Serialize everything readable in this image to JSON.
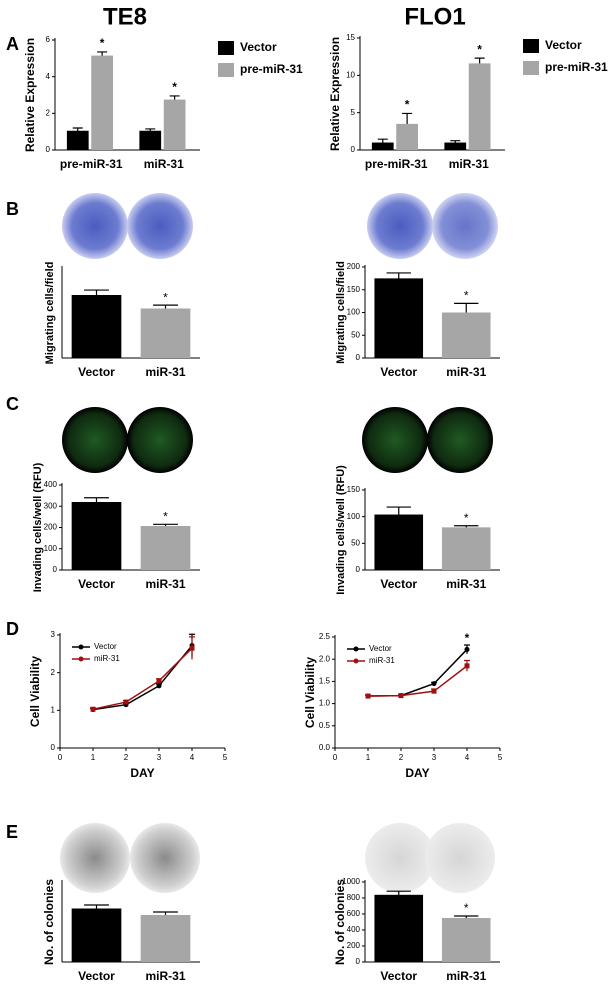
{
  "figure": {
    "columns": [
      "TE8",
      "FLO1"
    ],
    "panels": [
      "A",
      "B",
      "C",
      "D",
      "E"
    ]
  },
  "chart_data": [
    {
      "type": "bar",
      "ylabel": "Relative Expression",
      "categories": [
        "pre-miR-31",
        "miR-31"
      ],
      "series": [
        {
          "name": "Vector",
          "color": "#000000",
          "values": [
            1.05,
            1.05
          ],
          "errors": [
            0.15,
            0.1
          ]
        },
        {
          "name": "pre-miR-31",
          "color": "#a6a6a6",
          "values": [
            5.15,
            2.75
          ],
          "errors": [
            0.2,
            0.2
          ]
        }
      ],
      "ylim": [
        0,
        6
      ],
      "yticks": [
        0,
        2,
        4,
        6
      ],
      "legend": "outside-right",
      "annotations": [
        {
          "text": "*",
          "x": "pre-miR-31",
          "series": "pre-miR-31"
        },
        {
          "text": "*",
          "x": "miR-31",
          "series": "pre-miR-31"
        }
      ]
    },
    {
      "type": "bar",
      "ylabel": "Relative Expression",
      "categories": [
        "pre-miR-31",
        "miR-31"
      ],
      "series": [
        {
          "name": "Vector",
          "color": "#000000",
          "values": [
            1.0,
            1.0
          ],
          "errors": [
            0.45,
            0.25
          ]
        },
        {
          "name": "pre-miR-31",
          "color": "#a6a6a6",
          "values": [
            3.5,
            11.6
          ],
          "errors": [
            1.4,
            0.7
          ]
        }
      ],
      "ylim": [
        0,
        15
      ],
      "yticks": [
        0,
        5,
        10,
        15
      ],
      "legend": "outside-right",
      "annotations": [
        {
          "text": "*",
          "x": "pre-miR-31",
          "series": "pre-miR-31"
        },
        {
          "text": "*",
          "x": "miR-31",
          "series": "pre-miR-31"
        }
      ]
    },
    {
      "type": "bar",
      "ylabel": "Migrating cells/field",
      "categories": [
        "Vector",
        "miR-31"
      ],
      "values": [
        280,
        220
      ],
      "errors": [
        22,
        15
      ],
      "colors": [
        "#000000",
        "#a6a6a6"
      ],
      "ylim": [
        0,
        400
      ],
      "annotations": [
        {
          "text": "*",
          "x": "miR-31"
        }
      ]
    },
    {
      "type": "bar",
      "ylabel": "Migrating cells/field",
      "categories": [
        "Vector",
        "miR-31"
      ],
      "values": [
        175,
        100
      ],
      "errors": [
        12,
        20
      ],
      "colors": [
        "#000000",
        "#a6a6a6"
      ],
      "ylim": [
        0,
        200
      ],
      "yticks": [
        0,
        50,
        100,
        150,
        200
      ],
      "annotations": [
        {
          "text": "*",
          "x": "miR-31"
        }
      ]
    },
    {
      "type": "bar",
      "ylabel": "Invading cells/well (RFU)",
      "categories": [
        "Vector",
        "miR-31"
      ],
      "values": [
        320,
        207
      ],
      "errors": [
        20,
        8
      ],
      "colors": [
        "#000000",
        "#a6a6a6"
      ],
      "ylim": [
        0,
        400
      ],
      "yticks": [
        0,
        100,
        200,
        300,
        400
      ],
      "annotations": [
        {
          "text": "*",
          "x": "miR-31"
        }
      ]
    },
    {
      "type": "bar",
      "ylabel": "Invading cells/well (RFU)",
      "categories": [
        "Vector",
        "miR-31"
      ],
      "values": [
        104,
        80
      ],
      "errors": [
        14,
        3
      ],
      "colors": [
        "#000000",
        "#a6a6a6"
      ],
      "ylim": [
        0,
        150
      ],
      "yticks": [
        0,
        50,
        100,
        150
      ],
      "annotations": [
        {
          "text": "*",
          "x": "miR-31"
        }
      ]
    },
    {
      "type": "line",
      "ylabel": "Cell Viability",
      "xlabel": "DAY",
      "x": [
        1,
        2,
        3,
        4
      ],
      "series": [
        {
          "name": "Vector",
          "color": "#000000",
          "values": [
            1.02,
            1.15,
            1.65,
            2.72
          ],
          "errors": [
            0.03,
            0.03,
            0.05,
            0.3
          ]
        },
        {
          "name": "miR-31",
          "color": "#a01010",
          "values": [
            1.03,
            1.22,
            1.78,
            2.65
          ],
          "errors": [
            0.03,
            0.04,
            0.06,
            0.3
          ]
        }
      ],
      "xlim": [
        0,
        5
      ],
      "xticks": [
        0,
        1,
        2,
        3,
        4,
        5
      ],
      "ylim": [
        0,
        3
      ],
      "yticks": [
        0,
        1,
        2,
        3
      ],
      "legend": "upper-left"
    },
    {
      "type": "line",
      "ylabel": "Cell Viability",
      "xlabel": "DAY",
      "x": [
        1,
        2,
        3,
        4
      ],
      "series": [
        {
          "name": "Vector",
          "color": "#000000",
          "values": [
            1.17,
            1.18,
            1.45,
            2.22
          ],
          "errors": [
            0.02,
            0.02,
            0.03,
            0.1
          ]
        },
        {
          "name": "miR-31",
          "color": "#a01010",
          "values": [
            1.17,
            1.18,
            1.28,
            1.85
          ],
          "errors": [
            0.02,
            0.02,
            0.05,
            0.12
          ]
        }
      ],
      "xlim": [
        0,
        5
      ],
      "xticks": [
        0,
        1,
        2,
        3,
        4,
        5
      ],
      "ylim": [
        0,
        2.5
      ],
      "yticks": [
        {
          "value": 0,
          "label": "0.0"
        },
        0.5,
        {
          "value": 1,
          "label": "1.0"
        },
        1.5,
        {
          "value": 2,
          "label": "2.0"
        },
        2.5
      ],
      "legend": "upper-left",
      "annotations": [
        {
          "text": "*",
          "x": 4
        }
      ]
    },
    {
      "type": "bar",
      "ylabel": "No. of colonies",
      "categories": [
        "Vector",
        "miR-31"
      ],
      "values": [
        535,
        470
      ],
      "errors": [
        35,
        30
      ],
      "colors": [
        "#000000",
        "#a6a6a6"
      ],
      "ylim": [
        0,
        800
      ]
    },
    {
      "type": "bar",
      "ylabel": "No. of colonies",
      "categories": [
        "Vector",
        "miR-31"
      ],
      "values": [
        840,
        550
      ],
      "errors": [
        45,
        25
      ],
      "colors": [
        "#000000",
        "#a6a6a6"
      ],
      "ylim": [
        0,
        1000
      ],
      "yticks": [
        0,
        200,
        400,
        600,
        800,
        1000
      ],
      "annotations": [
        {
          "text": "*",
          "x": "miR-31"
        }
      ]
    }
  ]
}
